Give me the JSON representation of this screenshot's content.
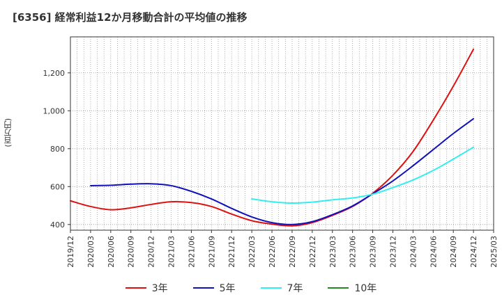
{
  "chart_data": {
    "type": "line",
    "title": "[6356]  経常利益12か月移動合計の平均値の推移",
    "ylabel": "(百万円)",
    "xlabel": "",
    "ylim": [
      370,
      1390
    ],
    "yticks": [
      400,
      600,
      800,
      1000,
      1200
    ],
    "ytick_labels": [
      "400",
      "600",
      "800",
      "1,000",
      "1,200"
    ],
    "x_start": "2019/12",
    "x_end": "2025/03",
    "xtick_labels": [
      "2019/12",
      "2020/03",
      "2020/06",
      "2020/09",
      "2020/12",
      "2021/03",
      "2021/06",
      "2021/09",
      "2021/12",
      "2022/03",
      "2022/06",
      "2022/09",
      "2022/12",
      "2023/03",
      "2023/06",
      "2023/09",
      "2023/12",
      "2024/03",
      "2024/06",
      "2024/09",
      "2024/12",
      "2025/03"
    ],
    "grid": true,
    "legend_position": "bottom",
    "series": [
      {
        "name": "3年",
        "color": "#dd1111",
        "points": [
          [
            "2019/12",
            525
          ],
          [
            "2020/03",
            495
          ],
          [
            "2020/06",
            478
          ],
          [
            "2020/09",
            488
          ],
          [
            "2020/12",
            506
          ],
          [
            "2021/03",
            520
          ],
          [
            "2021/06",
            516
          ],
          [
            "2021/09",
            495
          ],
          [
            "2021/12",
            455
          ],
          [
            "2022/03",
            420
          ],
          [
            "2022/06",
            402
          ],
          [
            "2022/09",
            393
          ],
          [
            "2022/12",
            410
          ],
          [
            "2023/03",
            448
          ],
          [
            "2023/06",
            495
          ],
          [
            "2023/09",
            565
          ],
          [
            "2023/12",
            660
          ],
          [
            "2024/03",
            785
          ],
          [
            "2024/06",
            950
          ],
          [
            "2024/09",
            1130
          ],
          [
            "2024/12",
            1325
          ]
        ]
      },
      {
        "name": "5年",
        "color": "#1111bb",
        "points": [
          [
            "2020/03",
            605
          ],
          [
            "2020/06",
            607
          ],
          [
            "2020/09",
            613
          ],
          [
            "2020/12",
            615
          ],
          [
            "2021/03",
            605
          ],
          [
            "2021/06",
            575
          ],
          [
            "2021/09",
            535
          ],
          [
            "2021/12",
            485
          ],
          [
            "2022/03",
            440
          ],
          [
            "2022/06",
            410
          ],
          [
            "2022/09",
            400
          ],
          [
            "2022/12",
            415
          ],
          [
            "2023/03",
            452
          ],
          [
            "2023/06",
            498
          ],
          [
            "2023/09",
            562
          ],
          [
            "2023/12",
            630
          ],
          [
            "2024/03",
            710
          ],
          [
            "2024/06",
            795
          ],
          [
            "2024/09",
            880
          ],
          [
            "2024/12",
            958
          ]
        ]
      },
      {
        "name": "7年",
        "color": "#33eeee",
        "points": [
          [
            "2022/03",
            535
          ],
          [
            "2022/06",
            520
          ],
          [
            "2022/09",
            513
          ],
          [
            "2022/12",
            518
          ],
          [
            "2023/03",
            530
          ],
          [
            "2023/06",
            540
          ],
          [
            "2023/09",
            560
          ],
          [
            "2023/12",
            595
          ],
          [
            "2024/03",
            635
          ],
          [
            "2024/06",
            685
          ],
          [
            "2024/09",
            745
          ],
          [
            "2024/12",
            808
          ]
        ]
      },
      {
        "name": "10年",
        "color": "#228822",
        "points": []
      }
    ]
  }
}
